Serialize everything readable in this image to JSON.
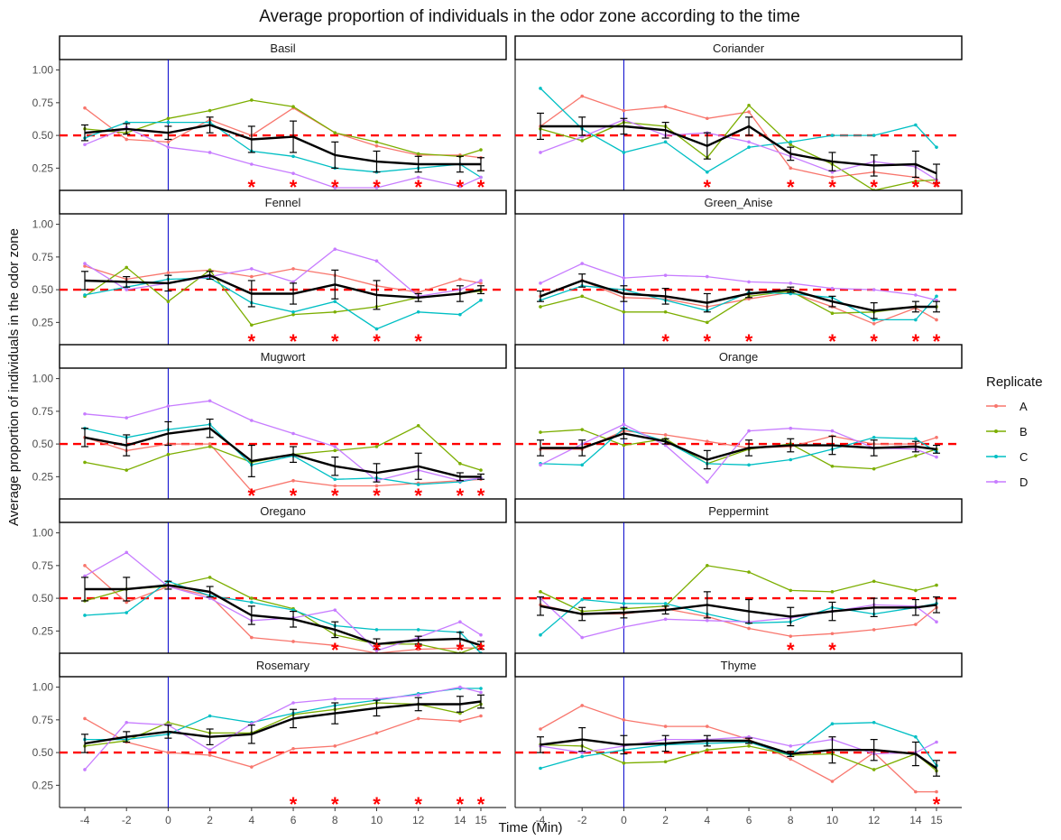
{
  "chart_data": {
    "type": "line",
    "title": "Average proportion of individuals in the odor zone according to the time",
    "xlabel": "Time (Min)",
    "ylabel": "Average proportion of individuals in the odor zone",
    "x": [
      -4,
      -2,
      0,
      2,
      4,
      6,
      8,
      10,
      12,
      14,
      15
    ],
    "x_tick_labels": [
      "-4",
      "-2",
      "0",
      "2",
      "4",
      "6",
      "8",
      "10",
      "12",
      "14",
      "15"
    ],
    "y_ticks": [
      0.25,
      0.5,
      0.75,
      1.0
    ],
    "y_tick_labels": [
      "0.25",
      "0.50",
      "0.75",
      "1.00"
    ],
    "ylim": [
      0.08,
      1.08
    ],
    "reference_line": 0.5,
    "odor_onset": 0,
    "legend_title": "Replicate",
    "legend_placement": "right",
    "series_names": [
      "A",
      "B",
      "C",
      "D"
    ],
    "colors": {
      "A": "#F8766D",
      "B": "#7CAE00",
      "C": "#00BFC4",
      "D": "#C77CFF",
      "mean": "#000000",
      "reference": "#ff0000",
      "onset": "#0000cc",
      "strip": "#ffffff"
    },
    "significance_marker": "*",
    "panels": [
      {
        "name": "Basil",
        "A": [
          0.71,
          0.47,
          0.45,
          0.62,
          0.5,
          0.71,
          0.52,
          0.42,
          0.35,
          0.35,
          0.33
        ],
        "B": [
          0.55,
          0.52,
          0.63,
          0.69,
          0.77,
          0.72,
          0.52,
          0.45,
          0.36,
          0.34,
          0.39
        ],
        "C": [
          0.48,
          0.6,
          0.6,
          0.6,
          0.38,
          0.34,
          0.25,
          0.22,
          0.25,
          0.28,
          0.18
        ],
        "D": [
          0.43,
          0.56,
          0.41,
          0.37,
          0.28,
          0.21,
          0.1,
          0.1,
          0.18,
          0.11,
          0.18
        ],
        "mean": [
          0.52,
          0.55,
          0.52,
          0.58,
          0.47,
          0.49,
          0.35,
          0.3,
          0.28,
          0.28,
          0.28
        ],
        "err": [
          0.06,
          0.04,
          0.05,
          0.06,
          0.1,
          0.12,
          0.1,
          0.08,
          0.06,
          0.06,
          0.05
        ],
        "significant": [
          4,
          6,
          8,
          10,
          12,
          14,
          15
        ]
      },
      {
        "name": "Coriander",
        "A": [
          0.57,
          0.8,
          0.69,
          0.72,
          0.63,
          0.68,
          0.25,
          0.18,
          0.22,
          0.18,
          0.12
        ],
        "B": [
          0.55,
          0.46,
          0.6,
          0.57,
          0.33,
          0.73,
          0.43,
          0.28,
          0.08,
          0.15,
          0.16
        ],
        "C": [
          0.86,
          0.55,
          0.37,
          0.45,
          0.22,
          0.41,
          0.45,
          0.5,
          0.5,
          0.58,
          0.41
        ],
        "D": [
          0.37,
          0.49,
          0.62,
          0.5,
          0.52,
          0.45,
          0.34,
          0.22,
          0.3,
          0.26,
          0.16
        ],
        "mean": [
          0.57,
          0.57,
          0.57,
          0.54,
          0.42,
          0.57,
          0.36,
          0.3,
          0.27,
          0.28,
          0.21
        ],
        "err": [
          0.1,
          0.07,
          0.06,
          0.06,
          0.1,
          0.07,
          0.05,
          0.07,
          0.08,
          0.1,
          0.07
        ],
        "significant": [
          4,
          8,
          10,
          12,
          14,
          15
        ]
      },
      {
        "name": "Fennel",
        "A": [
          0.68,
          0.58,
          0.63,
          0.65,
          0.6,
          0.66,
          0.61,
          0.53,
          0.48,
          0.58,
          0.55
        ],
        "B": [
          0.45,
          0.67,
          0.41,
          0.65,
          0.23,
          0.31,
          0.33,
          0.37,
          0.44,
          0.47,
          0.49
        ],
        "C": [
          0.46,
          0.52,
          0.58,
          0.59,
          0.4,
          0.33,
          0.41,
          0.2,
          0.33,
          0.31,
          0.42
        ],
        "D": [
          0.7,
          0.5,
          0.55,
          0.6,
          0.66,
          0.56,
          0.81,
          0.72,
          0.45,
          0.5,
          0.57
        ],
        "mean": [
          0.57,
          0.56,
          0.55,
          0.61,
          0.47,
          0.47,
          0.54,
          0.46,
          0.44,
          0.47,
          0.5
        ],
        "err": [
          0.07,
          0.04,
          0.06,
          0.03,
          0.1,
          0.08,
          0.11,
          0.11,
          0.03,
          0.06,
          0.03
        ],
        "significant": [
          4,
          6,
          8,
          10,
          12
        ]
      },
      {
        "name": "Green_Anise",
        "A": [
          0.45,
          0.57,
          0.44,
          0.43,
          0.37,
          0.43,
          0.48,
          0.37,
          0.24,
          0.36,
          0.27
        ],
        "B": [
          0.37,
          0.45,
          0.33,
          0.33,
          0.25,
          0.45,
          0.49,
          0.32,
          0.33,
          0.37,
          0.37
        ],
        "C": [
          0.42,
          0.53,
          0.5,
          0.42,
          0.34,
          0.48,
          0.47,
          0.44,
          0.27,
          0.27,
          0.45
        ],
        "D": [
          0.55,
          0.7,
          0.59,
          0.61,
          0.6,
          0.56,
          0.55,
          0.51,
          0.5,
          0.46,
          0.42
        ],
        "mean": [
          0.45,
          0.57,
          0.47,
          0.45,
          0.4,
          0.47,
          0.5,
          0.41,
          0.34,
          0.37,
          0.37
        ],
        "err": [
          0.04,
          0.05,
          0.06,
          0.06,
          0.07,
          0.03,
          0.02,
          0.04,
          0.06,
          0.04,
          0.04
        ],
        "significant": [
          2,
          4,
          6,
          10,
          12,
          14,
          15
        ]
      },
      {
        "name": "Mugwort",
        "A": [
          0.55,
          0.45,
          0.5,
          0.5,
          0.14,
          0.22,
          0.18,
          0.18,
          0.2,
          0.22,
          0.23
        ],
        "B": [
          0.36,
          0.3,
          0.42,
          0.48,
          0.36,
          0.42,
          0.45,
          0.48,
          0.64,
          0.35,
          0.3
        ],
        "C": [
          0.62,
          0.55,
          0.61,
          0.65,
          0.34,
          0.41,
          0.23,
          0.24,
          0.19,
          0.21,
          0.24
        ],
        "D": [
          0.73,
          0.7,
          0.79,
          0.83,
          0.68,
          0.58,
          0.48,
          0.22,
          0.3,
          0.22,
          0.24
        ],
        "mean": [
          0.55,
          0.49,
          0.58,
          0.62,
          0.37,
          0.42,
          0.33,
          0.28,
          0.33,
          0.25,
          0.25
        ],
        "err": [
          0.07,
          0.08,
          0.09,
          0.07,
          0.12,
          0.06,
          0.07,
          0.07,
          0.1,
          0.03,
          0.02
        ],
        "significant": [
          4,
          6,
          8,
          10,
          12,
          14,
          15
        ]
      },
      {
        "name": "Orange",
        "A": [
          0.46,
          0.46,
          0.6,
          0.57,
          0.52,
          0.47,
          0.48,
          0.56,
          0.5,
          0.5,
          0.55
        ],
        "B": [
          0.59,
          0.61,
          0.49,
          0.54,
          0.35,
          0.46,
          0.5,
          0.33,
          0.31,
          0.41,
          0.46
        ],
        "C": [
          0.35,
          0.34,
          0.62,
          0.52,
          0.35,
          0.34,
          0.38,
          0.46,
          0.55,
          0.54,
          0.44
        ],
        "D": [
          0.34,
          0.5,
          0.65,
          0.49,
          0.21,
          0.6,
          0.62,
          0.6,
          0.47,
          0.46,
          0.4
        ],
        "mean": [
          0.47,
          0.47,
          0.58,
          0.52,
          0.38,
          0.47,
          0.49,
          0.49,
          0.47,
          0.48,
          0.46
        ],
        "err": [
          0.06,
          0.06,
          0.04,
          0.02,
          0.07,
          0.06,
          0.05,
          0.07,
          0.06,
          0.04,
          0.03
        ],
        "significant": []
      },
      {
        "name": "Oregano",
        "A": [
          0.75,
          0.47,
          0.59,
          0.52,
          0.2,
          0.17,
          0.14,
          0.08,
          0.11,
          0.12,
          0.12
        ],
        "B": [
          0.48,
          0.57,
          0.59,
          0.66,
          0.5,
          0.42,
          0.22,
          0.15,
          0.15,
          0.08,
          0.14
        ],
        "C": [
          0.37,
          0.39,
          0.63,
          0.52,
          0.47,
          0.41,
          0.29,
          0.26,
          0.26,
          0.24,
          0.08
        ],
        "D": [
          0.67,
          0.85,
          0.59,
          0.5,
          0.33,
          0.35,
          0.41,
          0.1,
          0.2,
          0.32,
          0.22
        ],
        "mean": [
          0.57,
          0.57,
          0.6,
          0.55,
          0.37,
          0.34,
          0.26,
          0.15,
          0.18,
          0.19,
          0.14
        ],
        "err": [
          0.09,
          0.09,
          0.03,
          0.04,
          0.07,
          0.06,
          0.06,
          0.04,
          0.03,
          0.05,
          0.03
        ],
        "significant": [
          8,
          10,
          12,
          14,
          15
        ]
      },
      {
        "name": "Peppermint",
        "A": [
          0.45,
          0.38,
          0.38,
          0.42,
          0.36,
          0.27,
          0.21,
          0.23,
          0.26,
          0.3,
          0.43
        ],
        "B": [
          0.55,
          0.4,
          0.42,
          0.44,
          0.75,
          0.7,
          0.56,
          0.55,
          0.63,
          0.56,
          0.6
        ],
        "C": [
          0.22,
          0.49,
          0.46,
          0.46,
          0.38,
          0.31,
          0.32,
          0.43,
          0.38,
          0.43,
          0.46
        ],
        "D": [
          0.5,
          0.2,
          0.28,
          0.34,
          0.33,
          0.32,
          0.35,
          0.4,
          0.45,
          0.44,
          0.32
        ],
        "mean": [
          0.44,
          0.38,
          0.39,
          0.41,
          0.45,
          0.4,
          0.36,
          0.4,
          0.43,
          0.43,
          0.45
        ],
        "err": [
          0.07,
          0.05,
          0.04,
          0.03,
          0.1,
          0.09,
          0.07,
          0.07,
          0.07,
          0.06,
          0.06
        ],
        "significant": [
          8,
          10
        ]
      },
      {
        "name": "Rosemary",
        "A": [
          0.76,
          0.58,
          0.5,
          0.48,
          0.39,
          0.53,
          0.55,
          0.65,
          0.76,
          0.74,
          0.78
        ],
        "B": [
          0.55,
          0.59,
          0.73,
          0.65,
          0.65,
          0.79,
          0.83,
          0.88,
          0.87,
          0.8,
          0.87
        ],
        "C": [
          0.6,
          0.6,
          0.64,
          0.78,
          0.73,
          0.8,
          0.86,
          0.9,
          0.95,
          0.99,
          0.99
        ],
        "D": [
          0.37,
          0.73,
          0.71,
          0.52,
          0.72,
          0.88,
          0.91,
          0.91,
          0.94,
          1.0,
          0.96
        ],
        "mean": [
          0.57,
          0.62,
          0.66,
          0.62,
          0.64,
          0.76,
          0.8,
          0.84,
          0.87,
          0.87,
          0.89
        ],
        "err": [
          0.07,
          0.04,
          0.05,
          0.06,
          0.07,
          0.07,
          0.08,
          0.06,
          0.05,
          0.06,
          0.05
        ],
        "significant": [
          6,
          8,
          10,
          12,
          14,
          15
        ]
      },
      {
        "name": "Thyme",
        "A": [
          0.68,
          0.86,
          0.75,
          0.7,
          0.7,
          0.6,
          0.45,
          0.28,
          0.5,
          0.2,
          0.2
        ],
        "B": [
          0.56,
          0.55,
          0.42,
          0.43,
          0.52,
          0.55,
          0.48,
          0.49,
          0.37,
          0.49,
          0.36
        ],
        "C": [
          0.38,
          0.47,
          0.52,
          0.56,
          0.57,
          0.58,
          0.48,
          0.72,
          0.73,
          0.62,
          0.4
        ],
        "D": [
          0.55,
          0.5,
          0.55,
          0.6,
          0.6,
          0.62,
          0.55,
          0.6,
          0.49,
          0.5,
          0.58
        ],
        "mean": [
          0.56,
          0.6,
          0.56,
          0.57,
          0.59,
          0.59,
          0.49,
          0.52,
          0.52,
          0.49,
          0.38
        ],
        "err": [
          0.06,
          0.09,
          0.07,
          0.06,
          0.04,
          0.02,
          0.02,
          0.1,
          0.08,
          0.09,
          0.06
        ],
        "significant": [
          15
        ]
      }
    ]
  }
}
